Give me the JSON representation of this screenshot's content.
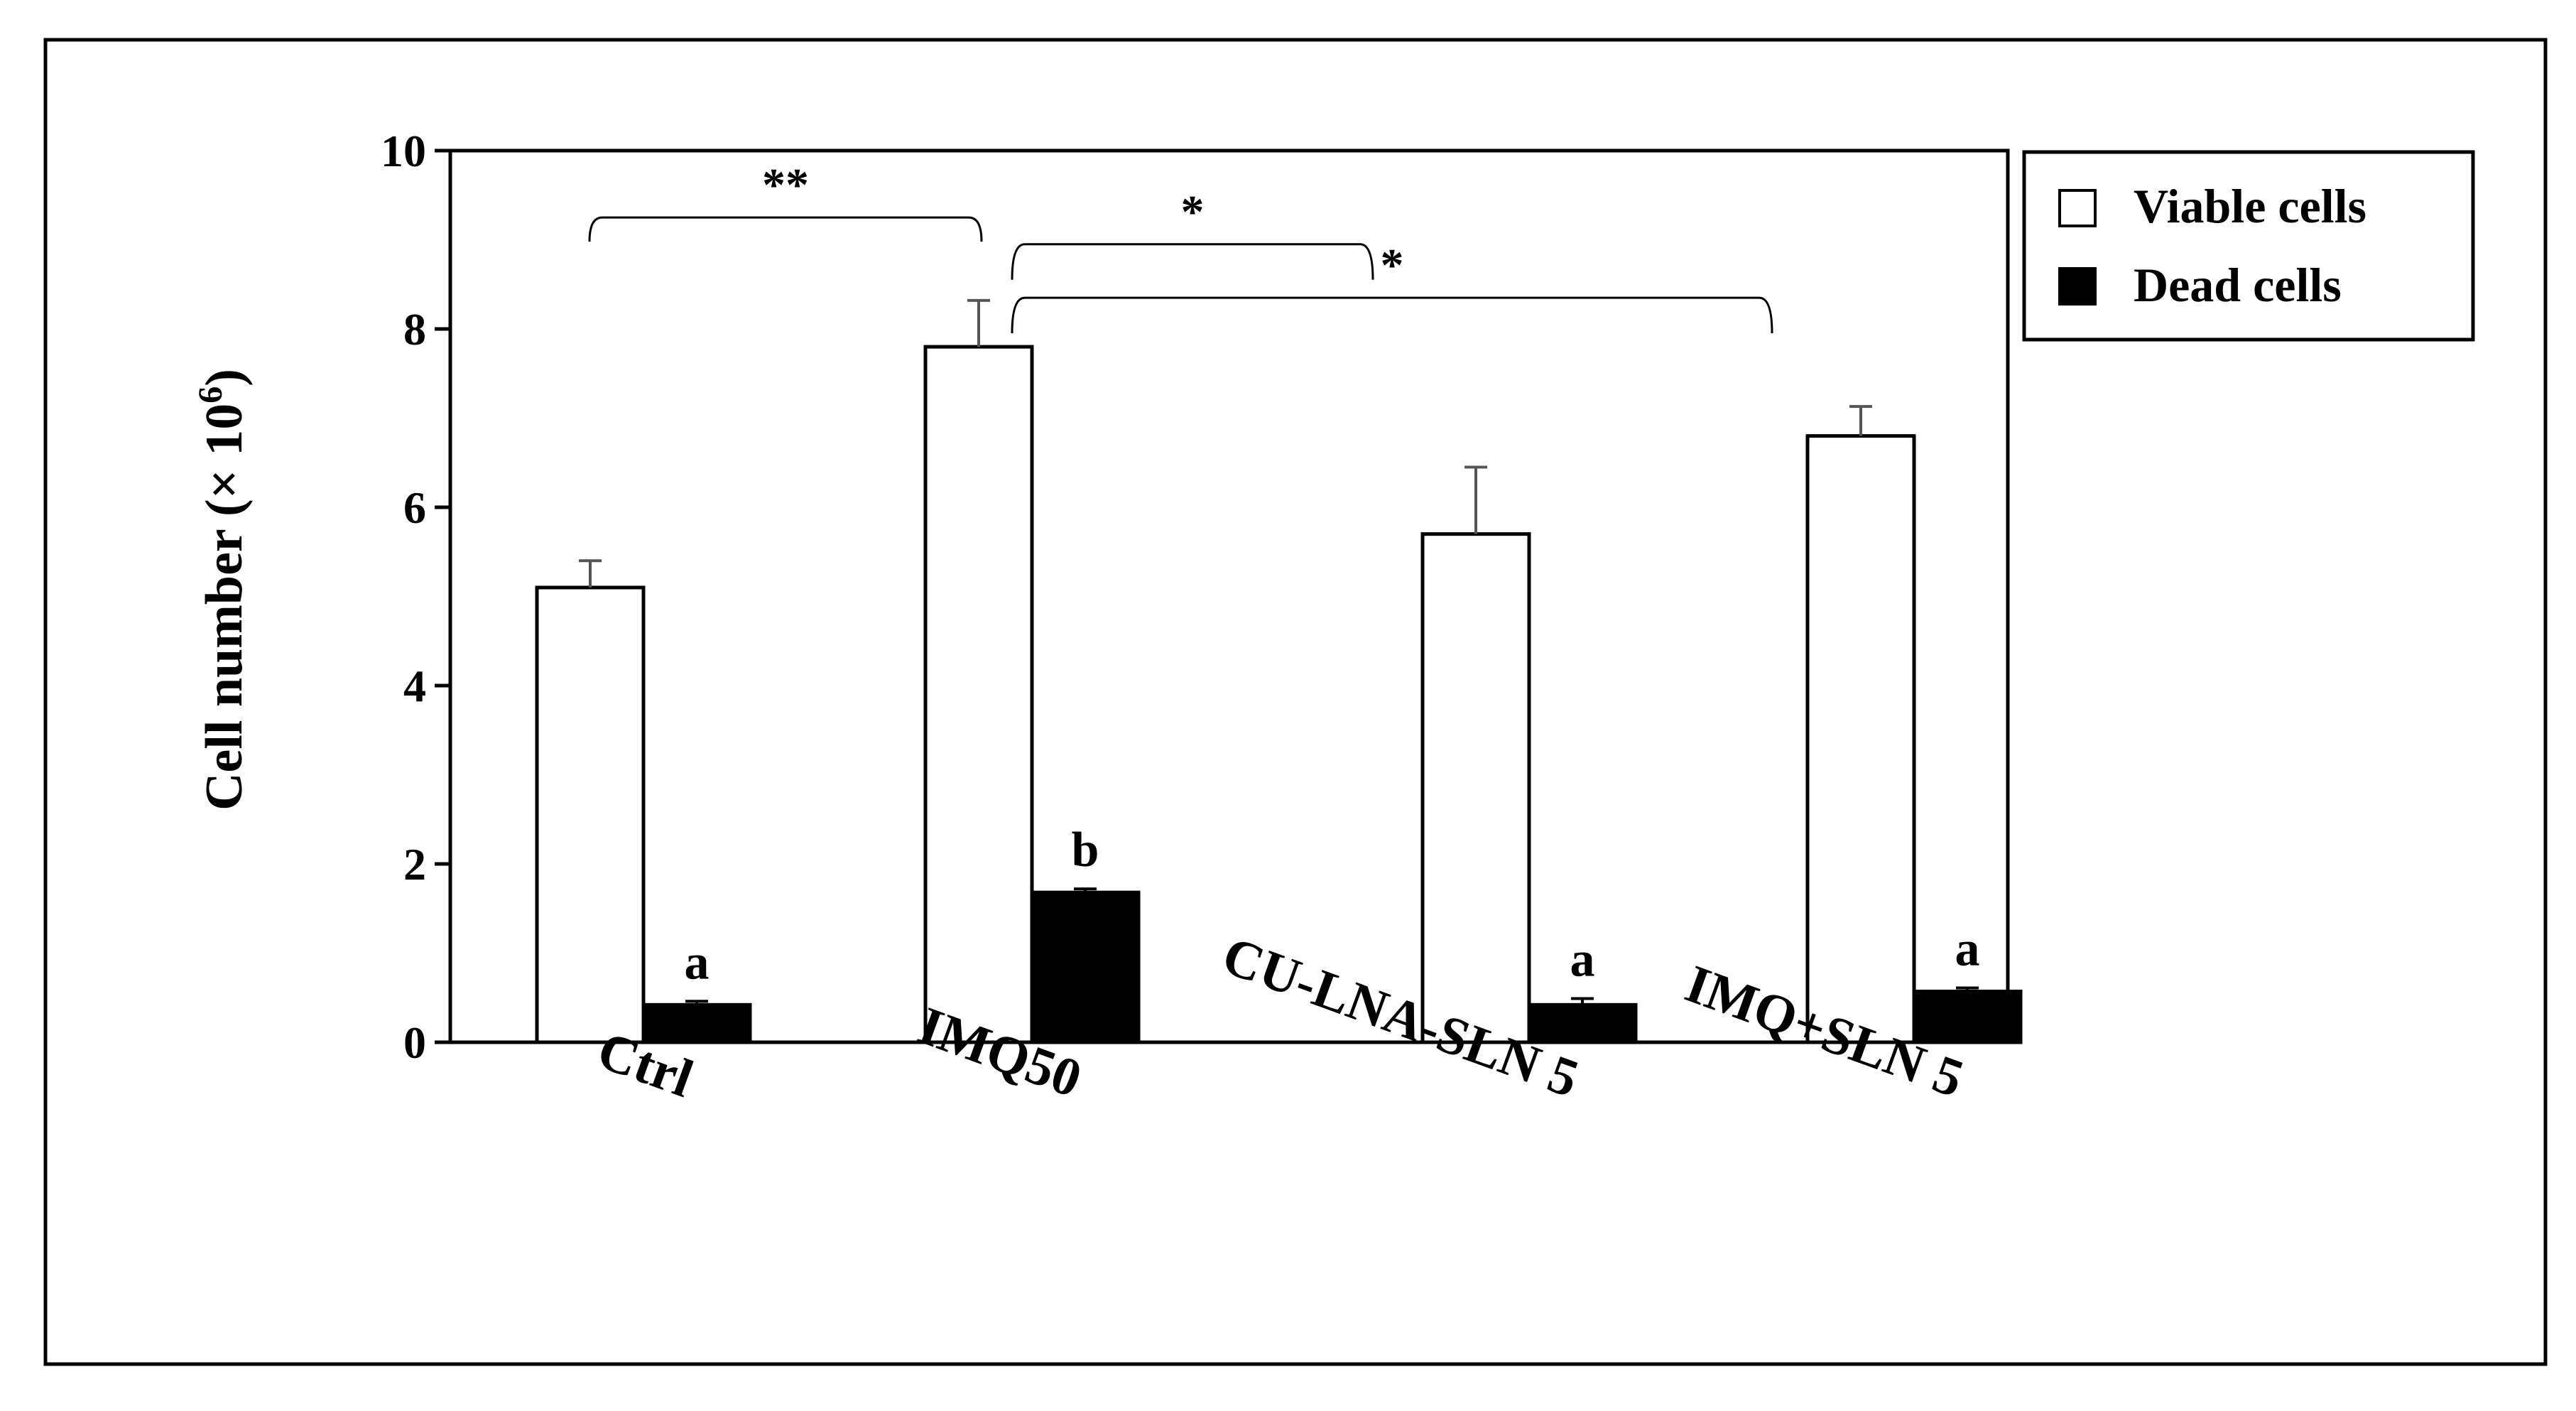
{
  "chart_data": {
    "type": "bar",
    "title": "",
    "xlabel": "",
    "ylabel": "Cell number (× 10",
    "ylabel_superscript": "6",
    "ylabel_suffix": ")",
    "ylim": [
      0,
      10
    ],
    "yticks": [
      "0",
      "2",
      "4",
      "6",
      "8",
      "10"
    ],
    "ytick_values": [
      0,
      2,
      4,
      6,
      8,
      10
    ],
    "categories": [
      "Ctrl",
      "IMQ50",
      "CU-LNA-SLN 5",
      "IMQ+SLN 5"
    ],
    "series": [
      {
        "name": "Viable cells",
        "fill": "#ffffff",
        "values": [
          5.1,
          7.8,
          5.7,
          6.8
        ],
        "errors": [
          0.3,
          0.52,
          0.75,
          0.33
        ],
        "labels": [
          "",
          "",
          "",
          ""
        ]
      },
      {
        "name": "Dead cells",
        "fill": "#000000",
        "values": [
          0.42,
          1.68,
          0.42,
          0.57
        ],
        "errors": [
          0.04,
          0.04,
          0.07,
          0.04
        ],
        "labels": [
          "a",
          "b",
          "a",
          "a"
        ]
      }
    ],
    "significance": [
      {
        "from": "Ctrl",
        "to": "IMQ50",
        "label": "**",
        "level": 9.25
      },
      {
        "from": "IMQ50",
        "to": "CU-LNA-SLN 5",
        "label": "*",
        "level": 8.95
      },
      {
        "from": "IMQ50",
        "to": "IMQ+SLN 5",
        "label": "*",
        "level": 8.35
      }
    ],
    "legend": {
      "position": "top-right",
      "box_border": true
    }
  },
  "colors": {
    "ink": "#000000",
    "background": "#ffffff",
    "error_bar": "#555555"
  }
}
